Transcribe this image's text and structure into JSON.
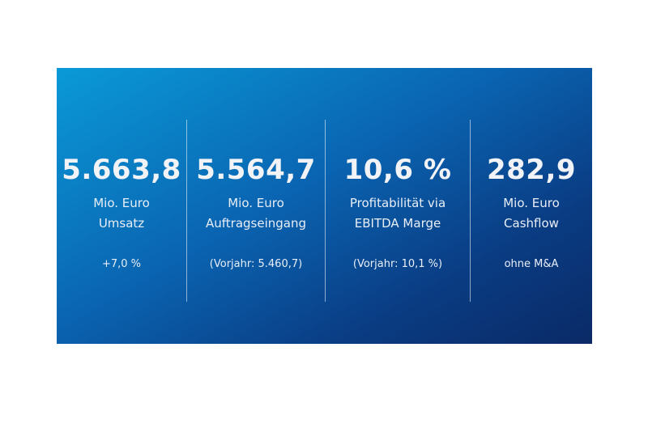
{
  "kpis": [
    {
      "value": "5.663,8",
      "unit": "Mio. Euro",
      "label": "Umsatz",
      "note": "+7,0 %"
    },
    {
      "value": "5.564,7",
      "unit": "Mio. Euro",
      "label": "Auftragseingang",
      "note": "(Vorjahr: 5.460,7)"
    },
    {
      "value": "10,6 %",
      "unit": "Profitabilität via",
      "label": "EBITDA Marge",
      "note": "(Vorjahr: 10,1 %)"
    },
    {
      "value": "282,9",
      "unit": "Mio. Euro",
      "label": "Cashflow",
      "note": "ohne M&A"
    }
  ]
}
